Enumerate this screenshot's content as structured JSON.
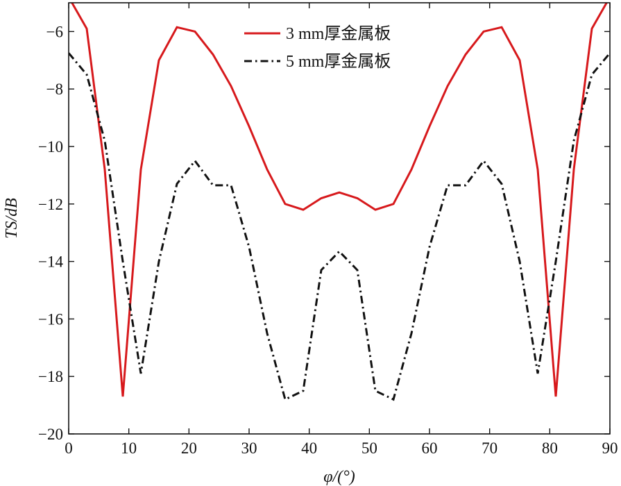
{
  "chart_data": {
    "type": "line",
    "xlabel": "φ/(°)",
    "ylabel": "TS/dB",
    "xlim": [
      0,
      90
    ],
    "ylim": [
      -20,
      -5
    ],
    "xticks": [
      0,
      10,
      20,
      30,
      40,
      50,
      60,
      70,
      80,
      90
    ],
    "yticks": [
      -20,
      -18,
      -16,
      -14,
      -12,
      -10,
      -8,
      -6
    ],
    "ytick_labels": [
      "−20",
      "−18",
      "−16",
      "−14",
      "−12",
      "−10",
      "−8",
      "−6"
    ],
    "grid": false,
    "legend_position": "top-center",
    "series": [
      {
        "name": "3 mm厚金属板",
        "color": "#d7191c",
        "line_style": "solid",
        "x": [
          0,
          3,
          6,
          9,
          12,
          15,
          18,
          21,
          24,
          27,
          30,
          33,
          36,
          39,
          42,
          45,
          48,
          51,
          54,
          57,
          60,
          63,
          66,
          69,
          72,
          75,
          78,
          81,
          84,
          87,
          90
        ],
        "values": [
          -4.8,
          -5.9,
          -10.8,
          -18.7,
          -10.8,
          -7.0,
          -5.85,
          -6.0,
          -6.8,
          -7.9,
          -9.3,
          -10.8,
          -12.0,
          -12.2,
          -11.8,
          -11.6,
          -11.8,
          -12.2,
          -12.0,
          -10.8,
          -9.3,
          -7.9,
          -6.8,
          -6.0,
          -5.85,
          -7.0,
          -10.8,
          -18.7,
          -10.8,
          -5.9,
          -4.8
        ]
      },
      {
        "name": "5 mm厚金属板",
        "color": "#111111",
        "line_style": "dash-dot",
        "x": [
          0,
          3,
          6,
          9,
          12,
          15,
          18,
          21,
          24,
          27,
          30,
          33,
          36,
          39,
          42,
          45,
          48,
          51,
          54,
          57,
          60,
          63,
          66,
          69,
          72,
          75,
          78,
          81,
          84,
          87,
          90
        ],
        "values": [
          -6.75,
          -7.5,
          -9.8,
          -14.0,
          -17.9,
          -14.0,
          -11.3,
          -10.5,
          -11.35,
          -11.35,
          -13.5,
          -16.5,
          -18.8,
          -18.5,
          -14.3,
          -13.65,
          -14.3,
          -18.5,
          -18.8,
          -16.5,
          -13.5,
          -11.35,
          -11.35,
          -10.5,
          -11.3,
          -14.0,
          -17.9,
          -14.0,
          -9.8,
          -7.5,
          -6.75
        ]
      }
    ]
  }
}
